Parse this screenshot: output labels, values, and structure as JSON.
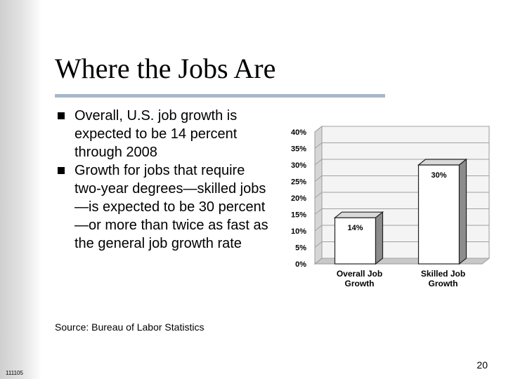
{
  "slide": {
    "title": "Where the Jobs Are",
    "bullets": [
      "Overall, U.S. job growth is expected to be 14 percent through 2008",
      "Growth for jobs that require two-year degrees—skilled jobs—is expected to be 30 percent—or more than twice as fast as the general job growth rate"
    ],
    "source": "Source: Bureau of Labor Statistics",
    "page_number": "20",
    "footer_code": "111105"
  },
  "chart_data": {
    "type": "bar",
    "categories": [
      "Overall Job Growth",
      "Skilled Job Growth"
    ],
    "category_lines": [
      [
        "Overall Job",
        "Growth"
      ],
      [
        "Skilled Job",
        "Growth"
      ]
    ],
    "values": [
      14,
      30
    ],
    "value_labels": [
      "14%",
      "30%"
    ],
    "yticks": [
      "0%",
      "5%",
      "10%",
      "15%",
      "20%",
      "25%",
      "30%",
      "35%",
      "40%"
    ],
    "ylim": [
      0,
      40
    ],
    "grid": true,
    "style": "3d"
  }
}
